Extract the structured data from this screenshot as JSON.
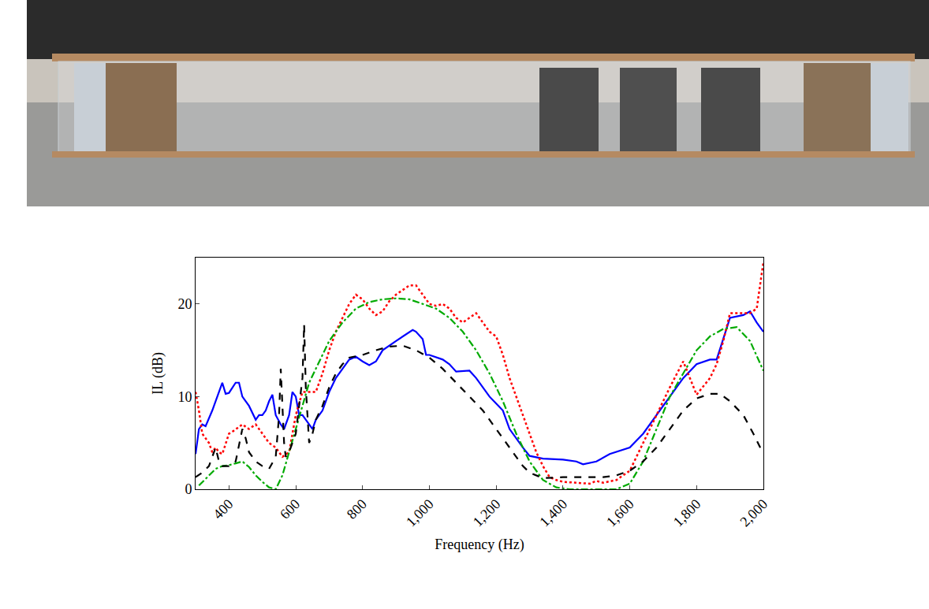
{
  "chart_data": {
    "type": "line",
    "xlabel": "Frequency (Hz)",
    "ylabel": "IL (dB)",
    "xlim": [
      300,
      2000
    ],
    "ylim": [
      0,
      25
    ],
    "xticks": [
      400,
      600,
      800,
      {
        "value": 1000,
        "label": "1,000"
      },
      {
        "value": 1200,
        "label": "1,200"
      },
      {
        "value": 1400,
        "label": "1,400"
      },
      {
        "value": 1600,
        "label": "1,600"
      },
      {
        "value": 1800,
        "label": "1,800"
      },
      {
        "value": 2000,
        "label": "2,000"
      }
    ],
    "yticks": [
      0,
      10,
      20
    ],
    "grid": false,
    "series": [
      {
        "color": "#0000ff",
        "line_style": "solid",
        "x": [
          300,
          310,
          320,
          330,
          350,
          370,
          380,
          390,
          400,
          420,
          430,
          440,
          460,
          480,
          490,
          500,
          510,
          520,
          530,
          540,
          555,
          565,
          580,
          590,
          600,
          610,
          620,
          640,
          650,
          660,
          680,
          700,
          720,
          760,
          780,
          800,
          820,
          840,
          860,
          900,
          940,
          950,
          960,
          980,
          990,
          1000,
          1040,
          1060,
          1080,
          1120,
          1140,
          1180,
          1220,
          1240,
          1280,
          1300,
          1340,
          1400,
          1440,
          1460,
          1500,
          1540,
          1600,
          1640,
          1680,
          1720,
          1760,
          1800,
          1840,
          1860,
          1900,
          1940,
          1960,
          1980,
          2000
        ],
        "values": [
          3.8,
          6.5,
          7,
          6.8,
          8.5,
          10.5,
          11.5,
          10.3,
          10.4,
          11.5,
          11.5,
          10,
          9,
          7.5,
          8,
          8,
          8.5,
          9.5,
          10.2,
          8,
          7,
          6.5,
          8,
          10.5,
          10,
          8,
          8,
          7,
          6.5,
          7.5,
          8.5,
          10.5,
          12,
          14,
          14.3,
          13.8,
          13.4,
          13.8,
          15,
          16,
          17,
          17.2,
          17,
          16.2,
          14.5,
          14.5,
          14,
          13.5,
          12.7,
          12.8,
          12,
          10,
          8.5,
          6.5,
          4.5,
          3.6,
          3.3,
          3.2,
          3,
          2.7,
          3,
          3.8,
          4.5,
          6,
          8,
          10,
          12,
          13.5,
          14,
          14,
          18.5,
          18.8,
          19.2,
          18,
          17
        ]
      },
      {
        "color": "#ff0000",
        "line_style": "dotted",
        "x": [
          300,
          310,
          320,
          340,
          350,
          360,
          370,
          380,
          400,
          410,
          440,
          460,
          480,
          500,
          520,
          540,
          560,
          580,
          600,
          620,
          640,
          660,
          680,
          700,
          720,
          740,
          760,
          780,
          800,
          820,
          840,
          860,
          880,
          900,
          920,
          940,
          960,
          980,
          1000,
          1020,
          1040,
          1060,
          1080,
          1100,
          1120,
          1140,
          1160,
          1180,
          1200,
          1220,
          1240,
          1260,
          1280,
          1300,
          1320,
          1340,
          1360,
          1380,
          1400,
          1440,
          1480,
          1500,
          1520,
          1560,
          1600,
          1640,
          1680,
          1720,
          1760,
          1780,
          1800,
          1840,
          1860,
          1880,
          1900,
          1920,
          1960,
          1980,
          2000
        ],
        "values": [
          10.5,
          8.5,
          6,
          5,
          4,
          4.5,
          4,
          3.8,
          6,
          6.2,
          7,
          6.5,
          7,
          6,
          5,
          4.5,
          3.5,
          4,
          8,
          10.5,
          10.5,
          10.5,
          12.5,
          15,
          17,
          18.5,
          20,
          21,
          20.5,
          19.5,
          18.8,
          19.2,
          20.3,
          21,
          21.5,
          22,
          22,
          21,
          20,
          19.8,
          20,
          19.5,
          18.5,
          18,
          18.5,
          19,
          18,
          17,
          16.5,
          14.5,
          12,
          10,
          8,
          6,
          4,
          2.5,
          1.3,
          1,
          0.8,
          0.7,
          0.6,
          0.9,
          0.7,
          1,
          2,
          5,
          8,
          11,
          13.8,
          12,
          10.2,
          12,
          13.5,
          16,
          19,
          19,
          19,
          19.5,
          24.5
        ]
      },
      {
        "color": "#00aa00",
        "line_style": "dashdot",
        "x": [
          310,
          340,
          360,
          380,
          400,
          420,
          440,
          460,
          480,
          500,
          520,
          540,
          560,
          580,
          600,
          620,
          640,
          660,
          680,
          700,
          740,
          780,
          820,
          860,
          900,
          940,
          980,
          1020,
          1060,
          1100,
          1140,
          1180,
          1220,
          1260,
          1300,
          1340,
          1380,
          1420,
          1500,
          1560,
          1600,
          1640,
          1680,
          1720,
          1760,
          1800,
          1840,
          1880,
          1920,
          1960,
          2000
        ],
        "values": [
          0.4,
          1.5,
          2.2,
          2.5,
          2.6,
          2.8,
          3,
          2.4,
          1.5,
          0.8,
          0.2,
          0,
          1.5,
          4,
          6.5,
          9,
          11.5,
          13,
          14.5,
          16,
          18,
          19.5,
          20.2,
          20.5,
          20.6,
          20.5,
          20,
          19.5,
          18.5,
          17,
          15,
          12.5,
          9.5,
          6,
          3,
          1,
          0.2,
          0,
          0,
          0,
          0.6,
          3,
          6.5,
          10,
          12.5,
          15,
          16.5,
          17.3,
          17.5,
          16,
          12.8
        ]
      },
      {
        "color": "#000000",
        "line_style": "dashed",
        "x": [
          300,
          320,
          340,
          350,
          360,
          370,
          380,
          400,
          420,
          440,
          450,
          460,
          480,
          500,
          520,
          540,
          550,
          555,
          560,
          565,
          570,
          580,
          600,
          610,
          620,
          625,
          630,
          640,
          650,
          660,
          680,
          700,
          720,
          740,
          760,
          800,
          840,
          880,
          920,
          960,
          1000,
          1040,
          1080,
          1120,
          1160,
          1200,
          1240,
          1280,
          1300,
          1340,
          1400,
          1460,
          1520,
          1560,
          1600,
          1640,
          1680,
          1720,
          1760,
          1800,
          1840,
          1870,
          1900,
          1940,
          1970,
          2000
        ],
        "values": [
          1.3,
          1.8,
          2.5,
          3.5,
          4.5,
          3,
          2.5,
          2.5,
          3,
          6.5,
          5.5,
          4,
          3,
          2.5,
          2.2,
          3.5,
          8,
          13,
          9,
          5,
          3.5,
          4,
          6,
          9,
          12,
          17.8,
          11,
          5,
          6,
          7.5,
          9,
          11,
          12.5,
          13.5,
          14.2,
          14.5,
          15,
          15.4,
          15.5,
          15,
          14.2,
          13,
          11.5,
          10,
          8.5,
          6.5,
          4.5,
          2.5,
          1.8,
          1.2,
          1.3,
          1.3,
          1.3,
          1.5,
          2,
          3,
          4.5,
          6.5,
          8.5,
          9.8,
          10.3,
          10.3,
          9.5,
          8,
          6,
          3.8
        ]
      }
    ]
  }
}
